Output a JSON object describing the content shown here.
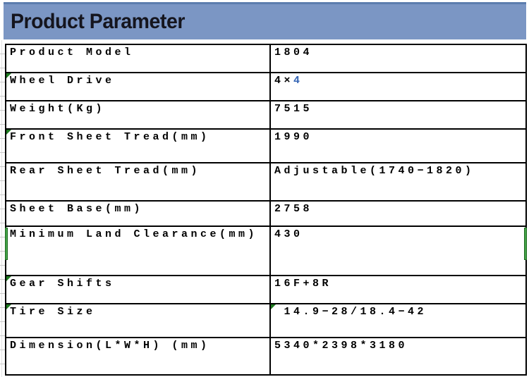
{
  "header": {
    "title": "Product Parameter",
    "bg_color": "#7b96c4",
    "top_edge_color": "#5c7dae"
  },
  "table": {
    "flag_color": "#1d7a1f",
    "bar_color": "#44a348",
    "value_accent_color": "#3565b5",
    "heights": [
      40,
      40,
      40,
      48,
      54,
      36,
      70,
      40,
      48,
      51
    ],
    "rows": [
      {
        "label": "Product Model",
        "value": "1804"
      },
      {
        "label": "Wheel Drive",
        "value": "4×4",
        "value_parts": [
          {
            "text": "4×",
            "color": "#000000"
          },
          {
            "text": "4",
            "color": "#3565b5"
          }
        ],
        "label_flag": true
      },
      {
        "label": "Weight(Kg)",
        "value": "7515"
      },
      {
        "label": "Front Sheet Tread(mm)",
        "value": "1990",
        "label_flag": true
      },
      {
        "label": "Rear Sheet Tread(mm)",
        "value": "Adjustable(1740−1820)"
      },
      {
        "label": "Sheet Base(mm)",
        "value": "2758"
      },
      {
        "label": "Minimum Land Clearance(mm)",
        "value": "430",
        "row_bars": true
      },
      {
        "label": "Gear Shifts",
        "value": "16F+8R",
        "label_flag": true
      },
      {
        "label": "Tire Size",
        "value": " 14.9−28/18.4−42",
        "label_flag": true,
        "value_flag": true
      },
      {
        "label": "Dimension(L*W*H) (mm)",
        "value": "5340*2398*3180"
      }
    ]
  }
}
